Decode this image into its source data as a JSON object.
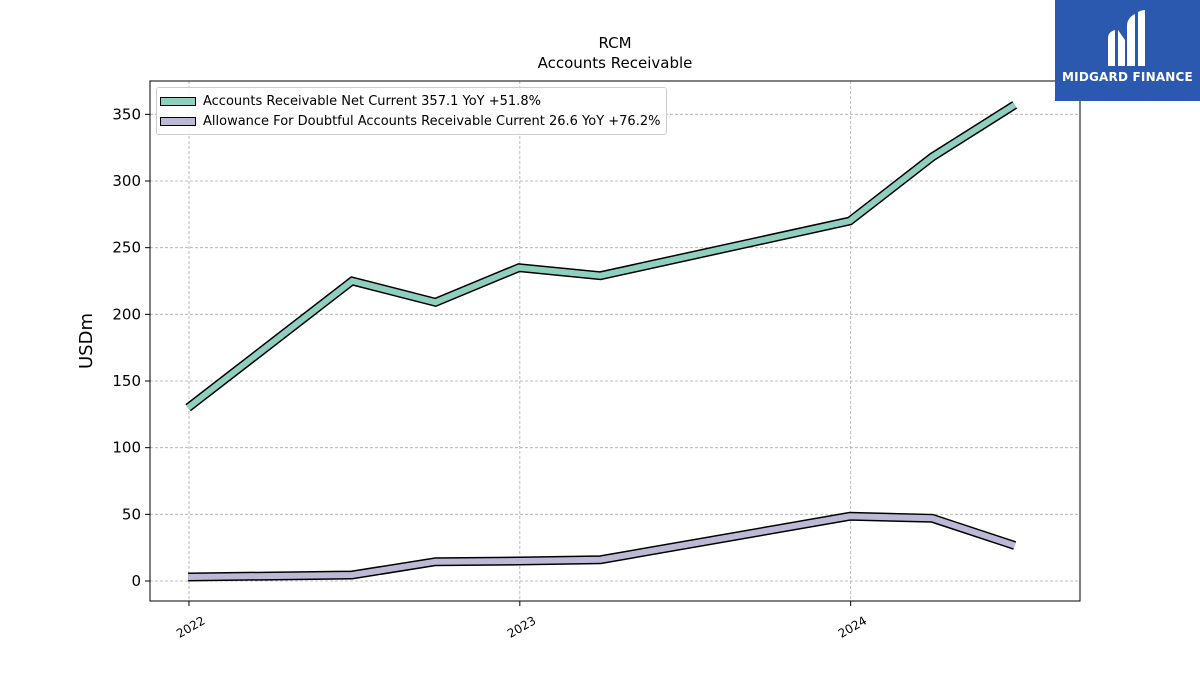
{
  "chart_data": {
    "type": "line",
    "title": "RCM",
    "subtitle": "Accounts Receivable",
    "xlabel": "",
    "ylabel": "USDm",
    "ylim": [
      -15,
      375
    ],
    "xlim": [
      "2021-11-19",
      "2024-09-10"
    ],
    "yticks": [
      0,
      50,
      100,
      150,
      200,
      250,
      300,
      350
    ],
    "xticks": [
      {
        "date": "2022-01-01",
        "label": "2022"
      },
      {
        "date": "2023-01-01",
        "label": "2023"
      },
      {
        "date": "2024-01-01",
        "label": "2024"
      }
    ],
    "grid": true,
    "legend_position": "top-left",
    "series": [
      {
        "name": "Accounts Receivable Net Current",
        "legend_label": "Accounts Receivable Net Current  357.1 YoY +51.8%",
        "color": "#8ecfc0",
        "points": [
          {
            "x": "2021-12-31",
            "y": 130
          },
          {
            "x": "2022-06-30",
            "y": 225
          },
          {
            "x": "2022-09-30",
            "y": 209
          },
          {
            "x": "2022-12-31",
            "y": 235
          },
          {
            "x": "2023-03-31",
            "y": 229
          },
          {
            "x": "2023-12-31",
            "y": 270
          },
          {
            "x": "2024-03-31",
            "y": 318
          },
          {
            "x": "2024-06-30",
            "y": 357.1
          }
        ]
      },
      {
        "name": "Allowance For Doubtful Accounts Receivable Current",
        "legend_label": "Allowance For Doubtful Accounts Receivable Current  26.6 YoY +76.2%",
        "color": "#bcb9d7",
        "points": [
          {
            "x": "2021-12-31",
            "y": 3
          },
          {
            "x": "2022-06-30",
            "y": 4.5
          },
          {
            "x": "2022-09-30",
            "y": 14.5
          },
          {
            "x": "2022-12-31",
            "y": 15
          },
          {
            "x": "2023-03-31",
            "y": 16
          },
          {
            "x": "2023-12-31",
            "y": 48.5
          },
          {
            "x": "2024-03-31",
            "y": 47
          },
          {
            "x": "2024-06-30",
            "y": 26.6
          }
        ]
      }
    ]
  },
  "logo": {
    "text": "MIDGARD FINANCE",
    "background": "#2b59b0"
  }
}
